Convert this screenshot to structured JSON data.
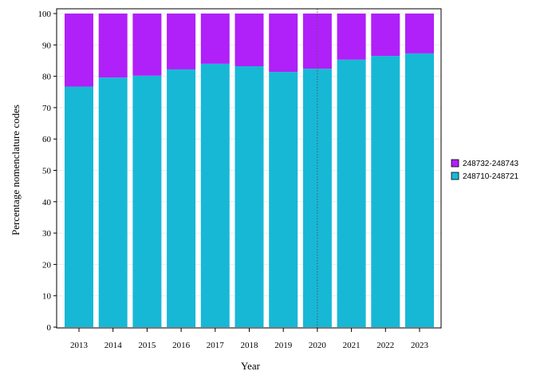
{
  "chart_data": {
    "type": "bar",
    "stacked": true,
    "categories": [
      "2013",
      "2014",
      "2015",
      "2016",
      "2017",
      "2018",
      "2019",
      "2020",
      "2021",
      "2022",
      "2023"
    ],
    "series": [
      {
        "name": "248710-248721",
        "color": "#17b8d6",
        "values": [
          76.7,
          79.6,
          80.2,
          82.2,
          84.0,
          83.2,
          81.4,
          82.4,
          85.3,
          86.5,
          87.3
        ]
      },
      {
        "name": "248732-248743",
        "color": "#b020f8",
        "values": [
          23.3,
          20.4,
          19.8,
          17.8,
          16.0,
          16.8,
          18.6,
          17.6,
          14.7,
          13.5,
          12.7
        ]
      }
    ],
    "legend_order": [
      "248732-248743",
      "248710-248721"
    ],
    "legend_position": "right",
    "xlabel": "Year",
    "ylabel": "Percentage nomenclature codes",
    "ylim": [
      0,
      100
    ],
    "yticks": [
      0,
      10,
      20,
      30,
      40,
      50,
      60,
      70,
      80,
      90,
      100
    ],
    "grid": "horizontal-light",
    "reference_line": {
      "category": "2020",
      "style": "dotted"
    }
  }
}
